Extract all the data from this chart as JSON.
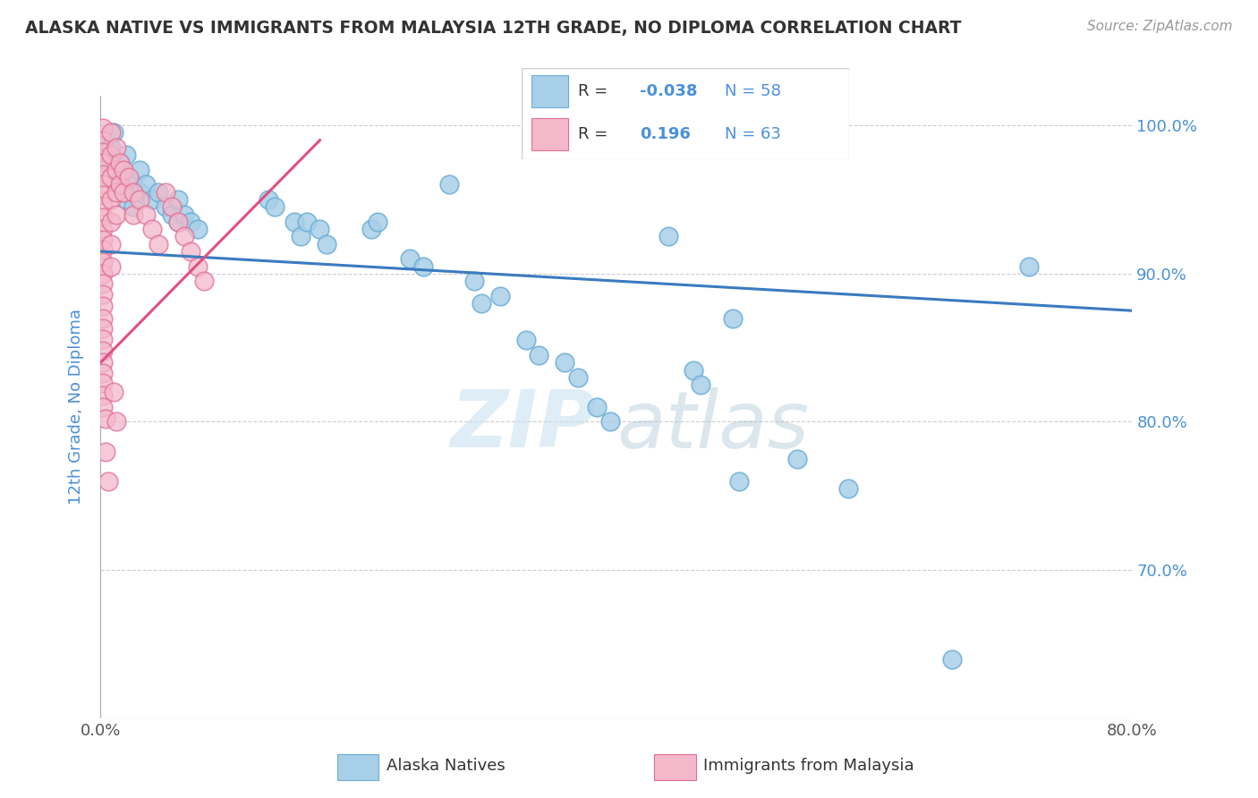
{
  "title": "ALASKA NATIVE VS IMMIGRANTS FROM MALAYSIA 12TH GRADE, NO DIPLOMA CORRELATION CHART",
  "source": "Source: ZipAtlas.com",
  "ylabel_label": "12th Grade, No Diploma",
  "xlim": [
    0.0,
    0.8
  ],
  "ylim": [
    0.6,
    1.02
  ],
  "ytick_vals": [
    0.7,
    0.8,
    0.9,
    1.0
  ],
  "ytick_labels": [
    "70.0%",
    "80.0%",
    "90.0%",
    "100.0%"
  ],
  "legend_r_blue": "-0.038",
  "legend_n_blue": "58",
  "legend_r_pink": "0.196",
  "legend_n_pink": "63",
  "blue_color": "#a8cfe8",
  "blue_edge_color": "#6baed6",
  "pink_color": "#f4b8cb",
  "pink_edge_color": "#e07090",
  "trend_blue_color": "#3a7bbf",
  "trend_pink_color": "#e05080",
  "watermark_zip": "ZIP",
  "watermark_atlas": "atlas",
  "blue_scatter": [
    [
      0.005,
      0.99
    ],
    [
      0.005,
      0.975
    ],
    [
      0.008,
      0.985
    ],
    [
      0.01,
      0.995
    ],
    [
      0.01,
      0.97
    ],
    [
      0.015,
      0.975
    ],
    [
      0.015,
      0.96
    ],
    [
      0.02,
      0.98
    ],
    [
      0.02,
      0.965
    ],
    [
      0.02,
      0.95
    ],
    [
      0.025,
      0.96
    ],
    [
      0.025,
      0.945
    ],
    [
      0.03,
      0.97
    ],
    [
      0.03,
      0.955
    ],
    [
      0.035,
      0.96
    ],
    [
      0.04,
      0.95
    ],
    [
      0.045,
      0.955
    ],
    [
      0.05,
      0.945
    ],
    [
      0.055,
      0.94
    ],
    [
      0.06,
      0.95
    ],
    [
      0.06,
      0.935
    ],
    [
      0.065,
      0.94
    ],
    [
      0.07,
      0.935
    ],
    [
      0.075,
      0.93
    ],
    [
      0.13,
      0.95
    ],
    [
      0.135,
      0.945
    ],
    [
      0.15,
      0.935
    ],
    [
      0.155,
      0.925
    ],
    [
      0.16,
      0.935
    ],
    [
      0.17,
      0.93
    ],
    [
      0.175,
      0.92
    ],
    [
      0.21,
      0.93
    ],
    [
      0.215,
      0.935
    ],
    [
      0.24,
      0.91
    ],
    [
      0.25,
      0.905
    ],
    [
      0.27,
      0.96
    ],
    [
      0.29,
      0.895
    ],
    [
      0.295,
      0.88
    ],
    [
      0.31,
      0.885
    ],
    [
      0.33,
      0.855
    ],
    [
      0.34,
      0.845
    ],
    [
      0.36,
      0.84
    ],
    [
      0.37,
      0.83
    ],
    [
      0.385,
      0.81
    ],
    [
      0.395,
      0.8
    ],
    [
      0.44,
      0.925
    ],
    [
      0.46,
      0.835
    ],
    [
      0.465,
      0.825
    ],
    [
      0.49,
      0.87
    ],
    [
      0.495,
      0.76
    ],
    [
      0.54,
      0.775
    ],
    [
      0.58,
      0.755
    ],
    [
      0.66,
      0.64
    ],
    [
      0.72,
      0.905
    ]
  ],
  "pink_scatter": [
    [
      0.002,
      0.998
    ],
    [
      0.002,
      0.99
    ],
    [
      0.002,
      0.982
    ],
    [
      0.002,
      0.975
    ],
    [
      0.002,
      0.967
    ],
    [
      0.002,
      0.96
    ],
    [
      0.002,
      0.953
    ],
    [
      0.002,
      0.946
    ],
    [
      0.002,
      0.938
    ],
    [
      0.002,
      0.93
    ],
    [
      0.002,
      0.923
    ],
    [
      0.002,
      0.916
    ],
    [
      0.002,
      0.908
    ],
    [
      0.002,
      0.9
    ],
    [
      0.002,
      0.893
    ],
    [
      0.002,
      0.886
    ],
    [
      0.002,
      0.878
    ],
    [
      0.002,
      0.87
    ],
    [
      0.002,
      0.863
    ],
    [
      0.002,
      0.856
    ],
    [
      0.002,
      0.848
    ],
    [
      0.002,
      0.84
    ],
    [
      0.002,
      0.833
    ],
    [
      0.002,
      0.826
    ],
    [
      0.002,
      0.818
    ],
    [
      0.002,
      0.81
    ],
    [
      0.008,
      0.995
    ],
    [
      0.008,
      0.98
    ],
    [
      0.008,
      0.965
    ],
    [
      0.008,
      0.95
    ],
    [
      0.008,
      0.935
    ],
    [
      0.008,
      0.92
    ],
    [
      0.008,
      0.905
    ],
    [
      0.012,
      0.985
    ],
    [
      0.012,
      0.97
    ],
    [
      0.012,
      0.955
    ],
    [
      0.012,
      0.94
    ],
    [
      0.015,
      0.975
    ],
    [
      0.015,
      0.96
    ],
    [
      0.018,
      0.97
    ],
    [
      0.018,
      0.955
    ],
    [
      0.022,
      0.965
    ],
    [
      0.025,
      0.955
    ],
    [
      0.025,
      0.94
    ],
    [
      0.03,
      0.95
    ],
    [
      0.035,
      0.94
    ],
    [
      0.04,
      0.93
    ],
    [
      0.045,
      0.92
    ],
    [
      0.05,
      0.955
    ],
    [
      0.055,
      0.945
    ],
    [
      0.06,
      0.935
    ],
    [
      0.065,
      0.925
    ],
    [
      0.07,
      0.915
    ],
    [
      0.075,
      0.905
    ],
    [
      0.08,
      0.895
    ],
    [
      0.004,
      0.802
    ],
    [
      0.004,
      0.78
    ],
    [
      0.006,
      0.76
    ],
    [
      0.01,
      0.82
    ],
    [
      0.012,
      0.8
    ]
  ]
}
